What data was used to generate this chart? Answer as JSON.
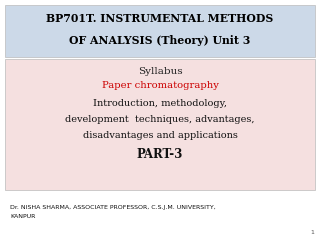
{
  "bg_color": "#ffffff",
  "header_bg": "#ccd9e8",
  "body_bg": "#f5e0e0",
  "header_text_line1": "BP701T. INSTRUMENTAL METHODS",
  "header_text_line2": "OF ANALYSIS (Theory) Unit 3",
  "header_color": "#000000",
  "syllabus_label": "Syllabus",
  "syllabus_color": "#222222",
  "paper_chrom_text": "Paper chromatography",
  "paper_chrom_color": "#cc0000",
  "body_line1": "Introduction, methodology,",
  "body_line2": "development  techniques, advantages,",
  "body_line3": "disadvantages and applications",
  "body_color": "#111111",
  "part_text": "PART-3",
  "part_color": "#111111",
  "footer_line1": "Dr. NISHA SHARMA, ASSOCIATE PROFESSOR, C.S.J.M. UNIVERSITY,",
  "footer_line2": "KANPUR",
  "footer_color": "#111111",
  "page_num": "1",
  "header_fontsize": 7.8,
  "syllabus_fontsize": 7.5,
  "paper_fontsize": 7.2,
  "body_fontsize": 7.0,
  "part_fontsize": 8.5,
  "footer_fontsize": 4.5
}
